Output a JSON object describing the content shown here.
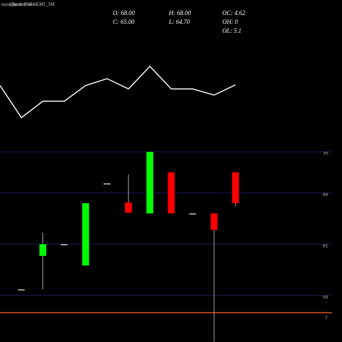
{
  "watermark": "munafasutra.com",
  "chart_data": [
    {
      "type": "line",
      "title": "Charts NSE SKML_SM",
      "color": "#ffffff",
      "values": [
        75,
        28,
        52,
        52,
        75,
        85,
        70,
        103,
        70,
        70,
        61,
        76
      ],
      "ylim": [
        0,
        110
      ]
    },
    {
      "type": "candlestick",
      "annotations": [
        "O: 68.00",
        "H: 68.00",
        "OC: 4.62",
        "C: 65.00",
        "L: 64.70",
        "OH: 0",
        "OL: 5.1"
      ],
      "categories": [
        null,
        null,
        null,
        null,
        null,
        null,
        null,
        null,
        null,
        null,
        null
      ],
      "open": [
        56.6,
        59.87,
        61.0,
        58.93,
        66.93,
        65.07,
        64.0,
        68.0,
        64.0,
        64.0,
        68.0
      ],
      "high": [
        56.6,
        62.13,
        61.0,
        65.0,
        66.93,
        67.8,
        70.0,
        68.0,
        64.0,
        64.0,
        68.0
      ],
      "low": [
        56.6,
        56.6,
        61.0,
        58.93,
        66.93,
        64.07,
        64.0,
        64.0,
        64.0,
        51.5,
        64.7
      ],
      "close": [
        56.6,
        61.0,
        61.0,
        65.0,
        66.93,
        64.07,
        70.0,
        64.0,
        64.0,
        62.4,
        65.0
      ],
      "up_color": "#00ff00",
      "down_color": "#ff0000",
      "flat_color": "#cccccc",
      "wick_color": "#aaaaaa",
      "ylim": [
        51.47,
        71.47
      ],
      "yticks": [
        70,
        66,
        61,
        56
      ],
      "grid": true,
      "grid_color": "#1a1a66",
      "hline": {
        "value": 54.33,
        "label": "7",
        "color": "#e8542a"
      }
    }
  ]
}
